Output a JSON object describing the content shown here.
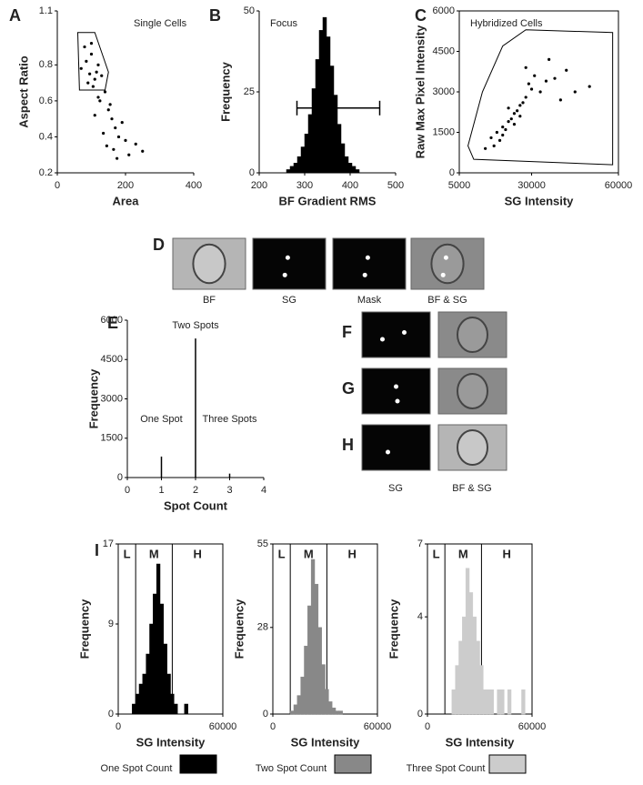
{
  "panel_labels": [
    "A",
    "B",
    "C",
    "D",
    "E",
    "F",
    "G",
    "H",
    "I"
  ],
  "images": {
    "D": [
      "BF",
      "SG",
      "Mask",
      "BF & SG"
    ],
    "FGH": [
      "SG",
      "BF & SG"
    ]
  },
  "chart_data": [
    {
      "type": "scatter",
      "xlabel": "Area",
      "ylabel": "Aspect Ratio",
      "annotation": "Single Cells",
      "color": "#000000",
      "xlim": [
        0,
        400
      ],
      "ylim": [
        0.2,
        1.1
      ],
      "xticks": [
        0,
        200,
        400
      ],
      "yticks": [
        0.2,
        0.4,
        0.6,
        0.8,
        1.1
      ],
      "x": [
        70,
        85,
        95,
        100,
        110,
        120,
        90,
        105,
        115,
        130,
        140,
        80,
        125,
        150,
        160,
        170,
        110,
        135,
        180,
        200,
        145,
        165,
        190,
        210,
        230,
        120,
        155,
        175,
        250,
        100
      ],
      "values": [
        0.78,
        0.82,
        0.75,
        0.86,
        0.72,
        0.8,
        0.7,
        0.68,
        0.76,
        0.74,
        0.65,
        0.9,
        0.6,
        0.55,
        0.5,
        0.45,
        0.52,
        0.42,
        0.4,
        0.38,
        0.35,
        0.33,
        0.48,
        0.3,
        0.36,
        0.62,
        0.58,
        0.28,
        0.32,
        0.92
      ],
      "gate": [
        [
          60,
          0.98
        ],
        [
          110,
          0.98
        ],
        [
          150,
          0.76
        ],
        [
          140,
          0.66
        ],
        [
          65,
          0.66
        ]
      ]
    },
    {
      "type": "histogram",
      "xlabel": "BF Gradient RMS",
      "ylabel": "Frequency",
      "annotation": "Focus",
      "color": "#000000",
      "xlim": [
        200,
        500
      ],
      "ylim": [
        0,
        50
      ],
      "xticks": [
        200,
        300,
        400,
        500
      ],
      "yticks": [
        0,
        25,
        50
      ],
      "bins": [
        260,
        268,
        276,
        284,
        292,
        300,
        308,
        316,
        324,
        332,
        340,
        348,
        356,
        364,
        372,
        380,
        388,
        396,
        404,
        412,
        420
      ],
      "values": [
        1,
        2,
        3,
        5,
        8,
        12,
        18,
        26,
        35,
        44,
        48,
        42,
        33,
        24,
        15,
        9,
        5,
        3,
        2,
        1
      ],
      "range": [
        283,
        465
      ],
      "range_y": 20
    },
    {
      "type": "scatter",
      "xlabel": "SG Intensity",
      "ylabel": "Raw Max Pixel Intensity",
      "annotation": "Hybridized Cells",
      "color": "#000000",
      "xlim": [
        5000,
        60000
      ],
      "ylim": [
        0,
        6000
      ],
      "xticks": [
        5000,
        30000,
        60000
      ],
      "yticks": [
        0,
        1500,
        3000,
        4500,
        6000
      ],
      "x": [
        16000,
        18000,
        20000,
        22000,
        24000,
        26000,
        28000,
        30000,
        19000,
        21000,
        23000,
        25000,
        27000,
        17000,
        29000,
        31000,
        33000,
        35000,
        14000,
        24000,
        26000,
        22000,
        38000,
        42000,
        45000,
        50000,
        40000,
        36000,
        28000,
        20000
      ],
      "values": [
        1300,
        1500,
        1700,
        1900,
        2200,
        2500,
        2800,
        3100,
        1200,
        1600,
        2000,
        2300,
        2600,
        1000,
        3300,
        3600,
        3000,
        3400,
        900,
        1800,
        2100,
        2400,
        3500,
        3800,
        3000,
        3200,
        2700,
        4200,
        3900,
        1400
      ],
      "gate": [
        [
          8000,
          1000
        ],
        [
          13000,
          3000
        ],
        [
          20000,
          4700
        ],
        [
          28000,
          5300
        ],
        [
          58000,
          5200
        ],
        [
          58000,
          300
        ],
        [
          10000,
          500
        ]
      ]
    },
    {
      "type": "bar",
      "xlabel": "Spot Count",
      "ylabel": "Frequency",
      "color": "#000000",
      "xlim": [
        0,
        4
      ],
      "ylim": [
        0,
        6000
      ],
      "xticks": [
        0,
        1,
        2,
        3,
        4
      ],
      "yticks": [
        0,
        1500,
        3000,
        4500,
        6000
      ],
      "x": [
        1,
        2,
        3
      ],
      "values": [
        800,
        5300,
        150
      ],
      "annotations": [
        "One Spot",
        "Two Spots",
        "Three Spots"
      ]
    },
    {
      "type": "histogram",
      "xlabel": "SG Intensity",
      "ylabel": "Frequency",
      "regions": [
        "L",
        "M",
        "H"
      ],
      "region_bounds": [
        10000,
        31000
      ],
      "xlim": [
        0,
        60000
      ],
      "ylim": [
        0,
        17
      ],
      "xticks": [
        0,
        60000
      ],
      "yticks": [
        0,
        9,
        17
      ],
      "color": "#000000",
      "legend": "One Spot Count",
      "bins": [
        8000,
        10000,
        12000,
        14000,
        16000,
        18000,
        20000,
        22000,
        24000,
        26000,
        28000,
        30000,
        32000,
        34000,
        36000,
        38000,
        40000
      ],
      "values": [
        1,
        2,
        3,
        4,
        6,
        9,
        12,
        15,
        11,
        7,
        4,
        2,
        1,
        0,
        0,
        1
      ]
    },
    {
      "type": "histogram",
      "xlabel": "SG Intensity",
      "ylabel": "Frequency",
      "regions": [
        "L",
        "M",
        "H"
      ],
      "region_bounds": [
        10000,
        31000
      ],
      "xlim": [
        0,
        60000
      ],
      "ylim": [
        0,
        55
      ],
      "xticks": [
        0,
        60000
      ],
      "yticks": [
        0,
        28,
        55
      ],
      "color": "#888888",
      "legend": "Two Spot Count",
      "bins": [
        10000,
        12000,
        14000,
        16000,
        18000,
        20000,
        22000,
        24000,
        26000,
        28000,
        30000,
        32000,
        34000,
        36000,
        38000,
        40000
      ],
      "values": [
        1,
        3,
        6,
        12,
        22,
        35,
        50,
        42,
        28,
        16,
        8,
        4,
        2,
        1,
        1
      ]
    },
    {
      "type": "histogram",
      "xlabel": "SG Intensity",
      "ylabel": "Frequency",
      "regions": [
        "L",
        "M",
        "H"
      ],
      "region_bounds": [
        10000,
        31000
      ],
      "xlim": [
        0,
        60000
      ],
      "ylim": [
        0,
        7
      ],
      "xticks": [
        0,
        60000
      ],
      "yticks": [
        0,
        4,
        7
      ],
      "color": "#cccccc",
      "legend": "Three Spot Count",
      "bins": [
        14000,
        16000,
        18000,
        20000,
        22000,
        24000,
        26000,
        28000,
        30000,
        32000,
        34000,
        36000,
        38000,
        40000,
        42000,
        44000,
        46000,
        48000,
        50000,
        52000,
        54000,
        56000
      ],
      "values": [
        1,
        2,
        3,
        4,
        6,
        5,
        4,
        3,
        2,
        1,
        1,
        1,
        0,
        1,
        1,
        0,
        1,
        0,
        0,
        0,
        1
      ]
    }
  ]
}
